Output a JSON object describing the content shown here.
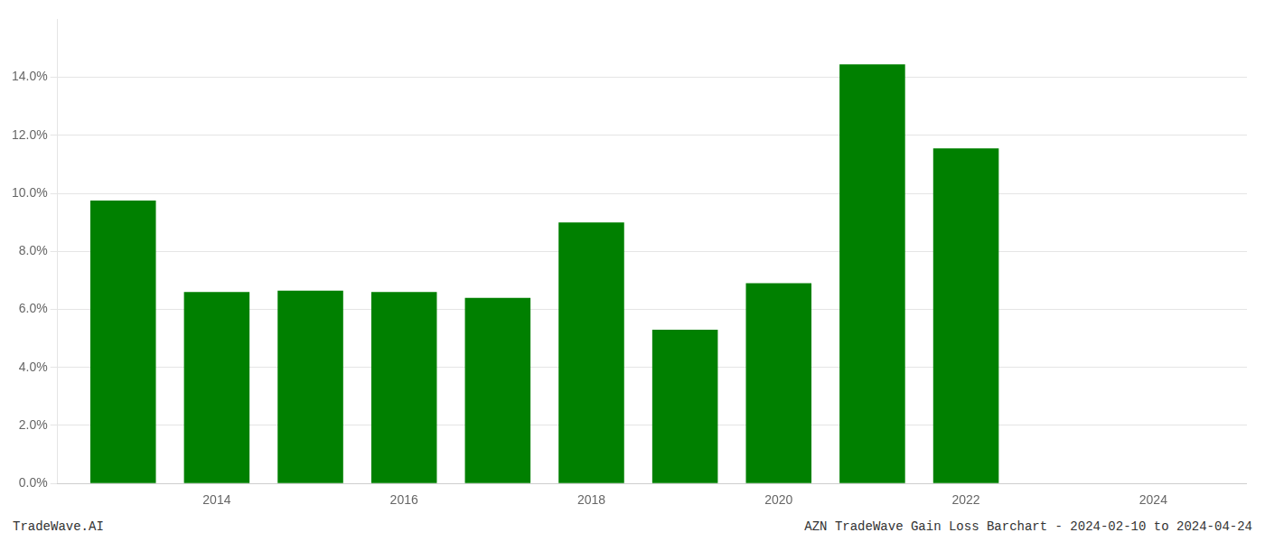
{
  "chart_data": {
    "type": "bar",
    "x": [
      2013,
      2014,
      2015,
      2016,
      2017,
      2018,
      2019,
      2020,
      2021,
      2022
    ],
    "values": [
      0.0975,
      0.066,
      0.0665,
      0.066,
      0.064,
      0.09,
      0.053,
      0.069,
      0.1445,
      0.1155
    ],
    "color": "#008000",
    "xlim": [
      2012.3,
      2025.0
    ],
    "xticks": [
      2014,
      2016,
      2018,
      2020,
      2022,
      2024
    ],
    "ylim": [
      0,
      0.16
    ],
    "yticks": [
      {
        "value": 0.0,
        "label": "0.0%"
      },
      {
        "value": 0.02,
        "label": "2.0%"
      },
      {
        "value": 0.04,
        "label": "4.0%"
      },
      {
        "value": 0.06,
        "label": "6.0%"
      },
      {
        "value": 0.08,
        "label": "8.0%"
      },
      {
        "value": 0.1,
        "label": "10.0%"
      },
      {
        "value": 0.12,
        "label": "12.0%"
      },
      {
        "value": 0.14,
        "label": "14.0%"
      }
    ],
    "grid": "y",
    "annotations": [
      "TradeWave.AI",
      "AZN TradeWave Gain Loss Barchart - 2024-02-10 to 2024-04-24"
    ]
  }
}
